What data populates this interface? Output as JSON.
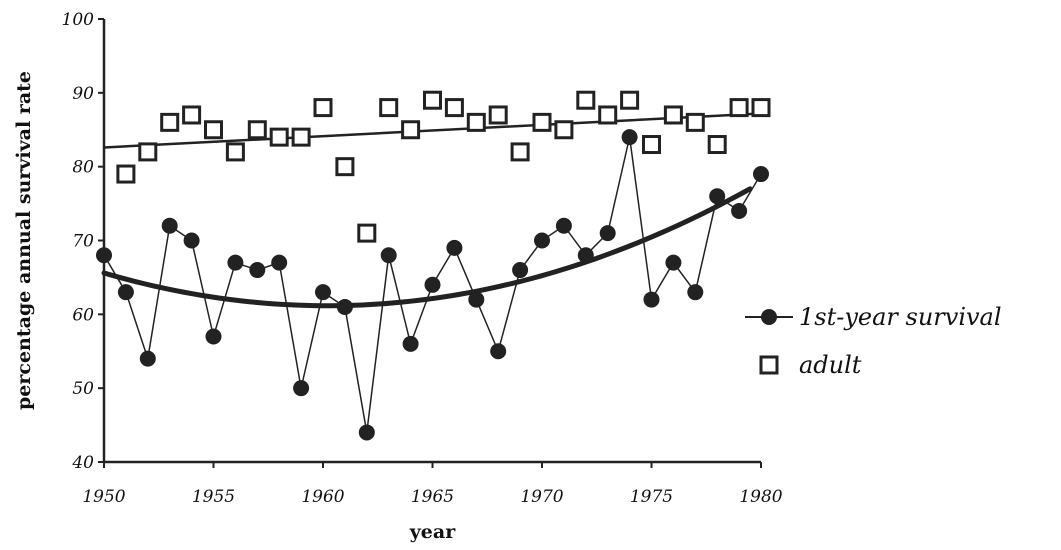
{
  "chart_data": {
    "type": "scatter",
    "xlabel": "year",
    "ylabel": "percentage annual survival rate",
    "xlim": [
      1950,
      1980
    ],
    "ylim": [
      40,
      100
    ],
    "x_ticks": [
      1950,
      1955,
      1960,
      1965,
      1970,
      1975,
      1980
    ],
    "y_ticks": [
      40,
      50,
      60,
      70,
      80,
      90,
      100
    ],
    "grid": false,
    "legend_position": "right",
    "series": [
      {
        "name": "1st-year survival",
        "marker": "filled-circle",
        "connected": true,
        "x": [
          1950,
          1951,
          1952,
          1953,
          1954,
          1955,
          1956,
          1957,
          1958,
          1959,
          1960,
          1961,
          1962,
          1963,
          1964,
          1965,
          1966,
          1967,
          1968,
          1969,
          1970,
          1971,
          1972,
          1973,
          1974,
          1975,
          1976,
          1977,
          1978,
          1979,
          1980
        ],
        "y": [
          68,
          63,
          54,
          72,
          70,
          57,
          67,
          66,
          67,
          50,
          63,
          61,
          44,
          68,
          56,
          64,
          69,
          62,
          55,
          66,
          70,
          72,
          68,
          71,
          84,
          62,
          67,
          63,
          76,
          74,
          79
        ]
      },
      {
        "name": "adult",
        "marker": "open-square",
        "connected": false,
        "x": [
          1951,
          1952,
          1953,
          1954,
          1955,
          1956,
          1957,
          1958,
          1959,
          1960,
          1961,
          1962,
          1963,
          1964,
          1965,
          1966,
          1967,
          1968,
          1969,
          1970,
          1971,
          1972,
          1973,
          1974,
          1975,
          1976,
          1977,
          1978,
          1979,
          1980
        ],
        "y": [
          79,
          82,
          86,
          87,
          85,
          82,
          85,
          84,
          84,
          88,
          80,
          71,
          88,
          85,
          89,
          88,
          86,
          87,
          82,
          86,
          85,
          89,
          87,
          89,
          83,
          87,
          86,
          83,
          88,
          88
        ]
      }
    ],
    "trendlines": [
      {
        "series": "adult",
        "kind": "linear",
        "x": [
          1950,
          1980
        ],
        "y": [
          82.6,
          87.2
        ]
      },
      {
        "series": "1st-year survival",
        "kind": "quadratic",
        "x": [
          1950,
          1962,
          1979.5
        ],
        "y": [
          65.6,
          61.3,
          77.0
        ]
      }
    ]
  }
}
